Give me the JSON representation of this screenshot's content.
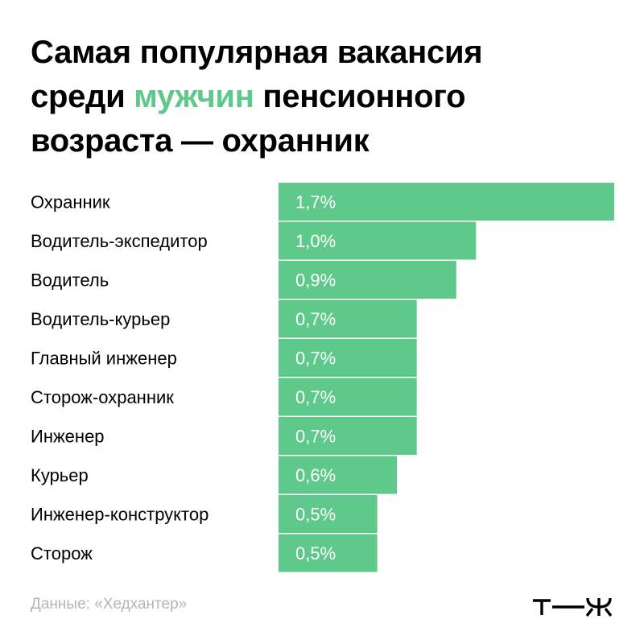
{
  "title": {
    "line1": "Самая популярная вакансия",
    "line2_before": "среди ",
    "line2_accent": "мужчин",
    "line2_after": " пенсионного",
    "line3": "возраста — охранник"
  },
  "footer": {
    "source": "Данные: «Хедхантер»",
    "logo_text": "т—ж"
  },
  "colors": {
    "bar": "#5ec98a",
    "accent": "#5ec98a",
    "bar_label": "#ffffff",
    "source_text": "#b5b5b5"
  },
  "chart_data": {
    "type": "bar",
    "orientation": "horizontal",
    "title": "Самая популярная вакансия среди мужчин пенсионного возраста — охранник",
    "categories": [
      "Охранник",
      "Водитель-экспедитор",
      "Водитель",
      "Водитель-курьер",
      "Главный инженер",
      "Сторож-охранник",
      "Инженер",
      "Курьер",
      "Инженер-конструктор",
      "Сторож"
    ],
    "values": [
      1.7,
      1.0,
      0.9,
      0.7,
      0.7,
      0.7,
      0.7,
      0.6,
      0.5,
      0.5
    ],
    "value_labels": [
      "1,7%",
      "1,0%",
      "0,9%",
      "0,7%",
      "0,7%",
      "0,7%",
      "0,7%",
      "0,6%",
      "0,5%",
      "0,5%"
    ],
    "xlim": [
      0,
      1.7
    ],
    "unit": "%",
    "grid": false,
    "legend": "none"
  }
}
